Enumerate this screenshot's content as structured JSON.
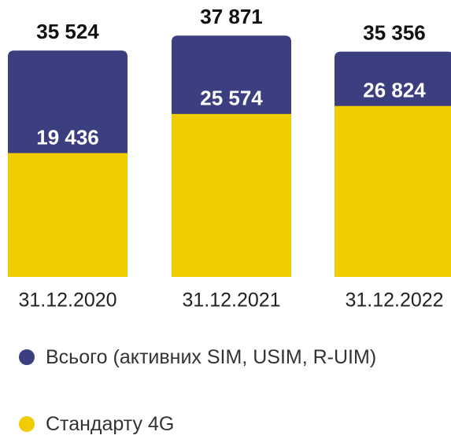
{
  "chart_data": {
    "type": "overlap-bar",
    "categories": [
      "31.12.2020",
      "31.12.2021",
      "31.12.2022"
    ],
    "series": [
      {
        "name": "Всього (активних SIM, USIM, R-UIM)",
        "color": "#3b3f80",
        "values": [
          35524,
          37871,
          35356
        ],
        "value_labels": [
          "35 524",
          "37 871",
          "35 356"
        ]
      },
      {
        "name": "Стандарту 4G",
        "color": "#f0cd00",
        "values": [
          19436,
          25574,
          26824
        ],
        "value_labels": [
          "19 436",
          "25 574",
          "26 824"
        ]
      }
    ],
    "ylim": [
      0,
      40000
    ]
  }
}
